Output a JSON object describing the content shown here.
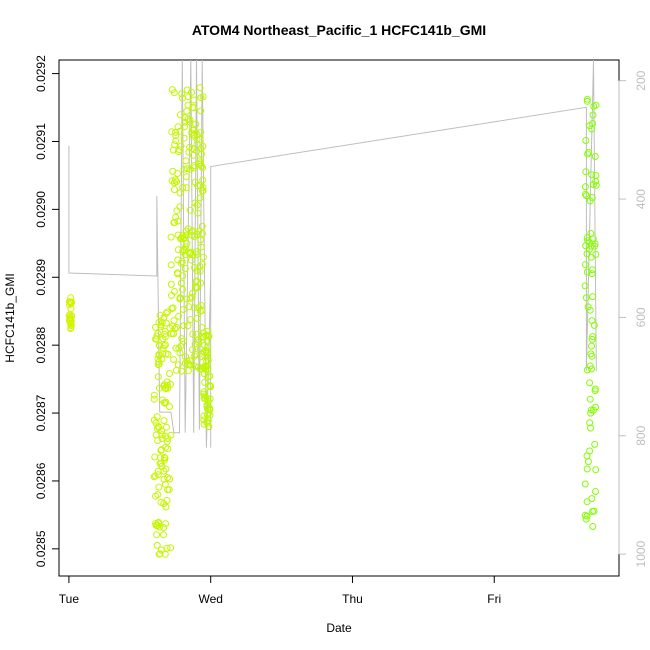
{
  "chart_data": {
    "type": "scatter",
    "title": "ATOM4 Northeast_Pacific_1 HCFC141b_GMI",
    "xlabel": "Date",
    "ylabel": "HCFC141b_GMI",
    "x_ticks": [
      "Tue",
      "Wed",
      "Thu",
      "Fri"
    ],
    "y_ticks": [
      "0.0285",
      "0.0286",
      "0.0287",
      "0.0288",
      "0.0289",
      "0.0290",
      "0.0291",
      "0.0292"
    ],
    "y2_ticks": [
      "200",
      "400",
      "600",
      "800",
      "1000"
    ],
    "xlim_days": [
      -0.07,
      3.88
    ],
    "ylim": [
      0.02846,
      0.02922
    ],
    "y2lim": [
      1037,
      165
    ],
    "grid": false,
    "legend": "none",
    "point_colors": {
      "early": "#d4f400",
      "late": "#7fff00"
    },
    "secondary_line_color": "#bebebe",
    "series": [
      {
        "role": "scatter-points",
        "groups": [
          {
            "x_range": [
              0.0,
              0.02
            ],
            "y_range": [
              0.02882,
              0.02887
            ]
          },
          {
            "x_range": [
              0.6,
              0.72
            ],
            "y_range": [
              0.02849,
              0.02885
            ]
          },
          {
            "x_range": [
              0.72,
              0.95
            ],
            "y_range": [
              0.02876,
              0.02918
            ]
          },
          {
            "x_range": [
              0.95,
              1.0
            ],
            "y_range": [
              0.02868,
              0.02883
            ]
          },
          {
            "x_range": [
              3.64,
              3.72
            ],
            "y_range": [
              0.02852,
              0.02918
            ]
          }
        ]
      },
      {
        "role": "pressure-line",
        "points": [
          [
            0.0,
            310
          ],
          [
            0.0,
            525
          ],
          [
            0.62,
            530
          ],
          [
            0.62,
            395
          ],
          [
            0.64,
            760
          ],
          [
            0.72,
            760
          ],
          [
            0.74,
            795
          ],
          [
            0.78,
            795
          ],
          [
            0.8,
            165
          ],
          [
            0.82,
            795
          ],
          [
            0.86,
            165
          ],
          [
            0.88,
            795
          ],
          [
            0.9,
            165
          ],
          [
            0.92,
            790
          ],
          [
            0.94,
            165
          ],
          [
            0.97,
            820
          ],
          [
            1.0,
            530
          ],
          [
            1.0,
            820
          ],
          [
            1.0,
            345
          ],
          [
            3.65,
            245
          ],
          [
            3.65,
            690
          ],
          [
            3.7,
            165
          ],
          [
            3.72,
            690
          ]
        ]
      }
    ]
  }
}
